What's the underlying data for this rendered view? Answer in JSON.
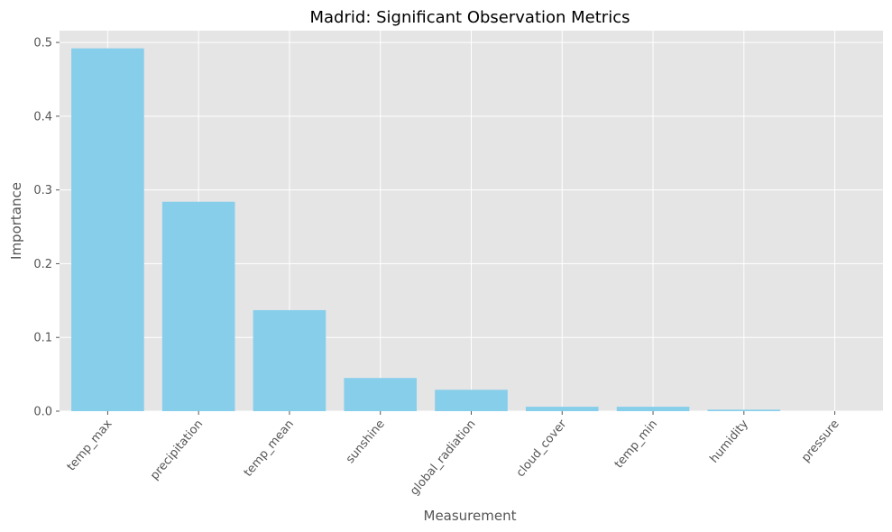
{
  "chart_data": {
    "type": "bar",
    "title": "Madrid: Significant Observation Metrics",
    "xlabel": "Measurement",
    "ylabel": "Importance",
    "categories": [
      "temp_max",
      "precipitation",
      "temp_mean",
      "sunshine",
      "global_radiation",
      "cloud_cover",
      "temp_min",
      "humidity",
      "pressure"
    ],
    "values": [
      0.492,
      0.284,
      0.137,
      0.045,
      0.029,
      0.006,
      0.006,
      0.002,
      0.0
    ],
    "yticks": [
      0.0,
      0.1,
      0.2,
      0.3,
      0.4,
      0.5
    ],
    "ytick_labels": [
      "0.0",
      "0.1",
      "0.2",
      "0.3",
      "0.4",
      "0.5"
    ],
    "ylim": [
      0,
      0.516
    ],
    "grid": true,
    "colors": {
      "bar": "#87CEEB",
      "plot_background": "#E5E5E5",
      "grid": "#FFFFFF"
    }
  }
}
